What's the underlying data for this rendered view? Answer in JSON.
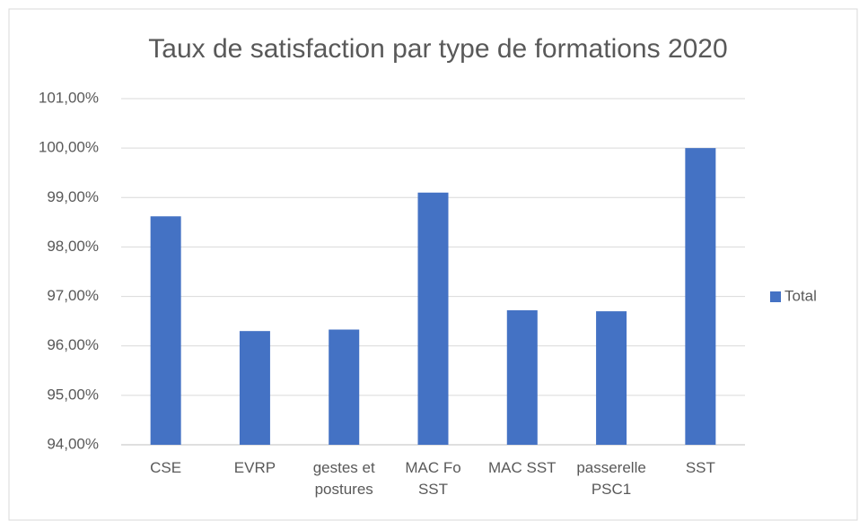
{
  "chart_data": {
    "type": "bar",
    "title": "Taux de satisfaction par type de formations 2020",
    "categories": [
      "CSE",
      "EVRP",
      "gestes et postures",
      "MAC Fo SST",
      "MAC SST",
      "passerelle PSC1",
      "SST"
    ],
    "series": [
      {
        "name": "Total",
        "color": "#4472c4",
        "values": [
          98.62,
          96.3,
          96.33,
          99.1,
          96.72,
          96.7,
          100
        ]
      }
    ],
    "ylim": [
      94,
      101
    ],
    "yticks": [
      {
        "value": 94,
        "label": "94,00%"
      },
      {
        "value": 95,
        "label": "95,00%"
      },
      {
        "value": 96,
        "label": "96,00%"
      },
      {
        "value": 97,
        "label": "97,00%"
      },
      {
        "value": 98,
        "label": "98,00%"
      },
      {
        "value": 99,
        "label": "99,00%"
      },
      {
        "value": 100,
        "label": "100,00%"
      },
      {
        "value": 101,
        "label": "101,00%"
      }
    ],
    "grid": true,
    "legend": "right"
  }
}
